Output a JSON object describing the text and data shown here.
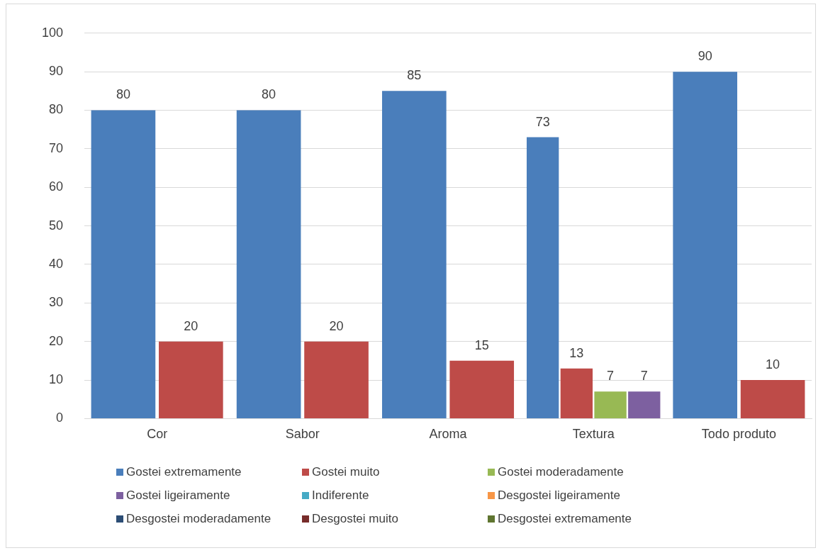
{
  "chart_data": {
    "type": "bar",
    "categories": [
      "Cor",
      "Sabor",
      "Aroma",
      "Textura",
      "Todo produto"
    ],
    "series": [
      {
        "name": "Gostei extremamente",
        "color": "#4a7ebb",
        "values": [
          80,
          80,
          85,
          73,
          90
        ]
      },
      {
        "name": "Gostei muito",
        "color": "#be4b48",
        "values": [
          20,
          20,
          15,
          13,
          10
        ]
      },
      {
        "name": "Gostei moderadamente",
        "color": "#98b954",
        "values": [
          null,
          null,
          null,
          7,
          null
        ]
      },
      {
        "name": "Gostei ligeiramente",
        "color": "#7d60a0",
        "values": [
          null,
          null,
          null,
          7,
          null
        ]
      },
      {
        "name": "Indiferente",
        "color": "#46aac5",
        "values": [
          null,
          null,
          null,
          null,
          null
        ]
      },
      {
        "name": "Desgostei ligeiramente",
        "color": "#f79646",
        "values": [
          null,
          null,
          null,
          null,
          null
        ]
      },
      {
        "name": "Desgostei moderadamente",
        "color": "#2c4d75",
        "values": [
          null,
          null,
          null,
          null,
          null
        ]
      },
      {
        "name": "Desgostei muito",
        "color": "#772c2a",
        "values": [
          null,
          null,
          null,
          null,
          null
        ]
      },
      {
        "name": "Desgostei extremamente",
        "color": "#5f7530",
        "values": [
          null,
          null,
          null,
          null,
          null
        ]
      }
    ],
    "ylim": [
      0,
      100
    ],
    "yticks": [
      0,
      10,
      20,
      30,
      40,
      50,
      60,
      70,
      80,
      90,
      100
    ],
    "grid": "y",
    "legend": "bottom",
    "data_labels": true
  }
}
